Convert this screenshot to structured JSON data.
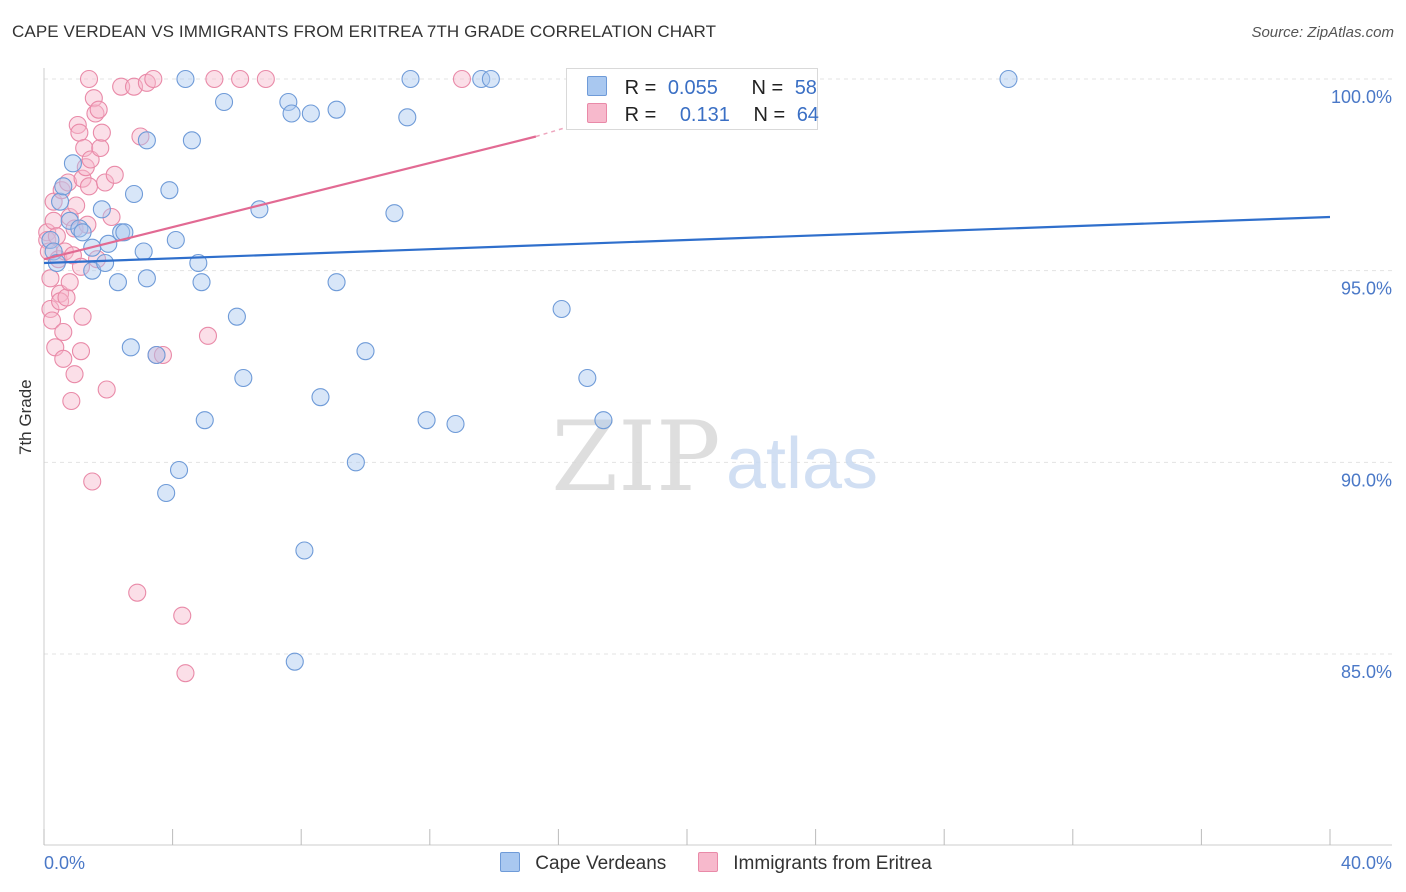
{
  "title": "CAPE VERDEAN VS IMMIGRANTS FROM ERITREA 7TH GRADE CORRELATION CHART",
  "source": "Source: ZipAtlas.com",
  "watermark": {
    "zip": "ZIP",
    "atlas": "atlas"
  },
  "legend": {
    "rows": [
      {
        "r_label": "R =",
        "r_value": "0.055",
        "n_label": "N =",
        "n_value": "58",
        "color": "#a9c8f0",
        "border": "#6f9bd8"
      },
      {
        "r_label": "R =",
        "r_value": "0.131",
        "n_label": "N =",
        "n_value": "64",
        "color": "#f7b9cc",
        "border": "#e98aa8"
      }
    ]
  },
  "bottom_legend": [
    {
      "label": "Cape Verdeans",
      "color": "#a9c8f0",
      "border": "#6f9bd8"
    },
    {
      "label": "Immigrants from Eritrea",
      "color": "#f7b9cc",
      "border": "#e98aa8"
    }
  ],
  "chart_data": {
    "type": "scatter",
    "title": "CAPE VERDEAN VS IMMIGRANTS FROM ERITREA 7TH GRADE CORRELATION CHART",
    "xlabel": "",
    "ylabel": "7th Grade",
    "xlim": [
      0,
      40
    ],
    "ylim": [
      80.0,
      100.5
    ],
    "x_tick_labels": [
      "0.0%",
      "40.0%"
    ],
    "y_ticks": [
      85,
      90,
      95,
      100
    ],
    "y_tick_labels": [
      "85.0%",
      "90.0%",
      "95.0%",
      "100.0%"
    ],
    "grid": true,
    "series": [
      {
        "name": "Cape Verdeans",
        "color": "#a9c8f0",
        "stroke": "#6f9bd8",
        "trend_color": "#2f6fcc",
        "trend": {
          "x": [
            0,
            40
          ],
          "y": [
            95.2,
            96.4
          ]
        },
        "points": [
          [
            0.2,
            95.8
          ],
          [
            0.3,
            95.5
          ],
          [
            0.4,
            95.2
          ],
          [
            0.5,
            96.8
          ],
          [
            0.6,
            97.2
          ],
          [
            0.8,
            96.3
          ],
          [
            0.9,
            97.8
          ],
          [
            1.1,
            96.1
          ],
          [
            1.2,
            96.0
          ],
          [
            1.5,
            95.6
          ],
          [
            1.5,
            95.0
          ],
          [
            1.8,
            96.6
          ],
          [
            1.9,
            95.2
          ],
          [
            2.0,
            95.7
          ],
          [
            2.3,
            94.7
          ],
          [
            2.4,
            96.0
          ],
          [
            2.5,
            96.0
          ],
          [
            2.7,
            93.0
          ],
          [
            2.8,
            97.0
          ],
          [
            3.1,
            95.5
          ],
          [
            3.2,
            94.8
          ],
          [
            3.2,
            98.4
          ],
          [
            3.5,
            92.8
          ],
          [
            3.8,
            89.2
          ],
          [
            3.9,
            97.1
          ],
          [
            4.1,
            95.8
          ],
          [
            4.2,
            89.8
          ],
          [
            4.4,
            100.0
          ],
          [
            4.6,
            98.4
          ],
          [
            4.8,
            95.2
          ],
          [
            4.9,
            94.7
          ],
          [
            5.0,
            91.1
          ],
          [
            5.6,
            99.4
          ],
          [
            6.0,
            93.8
          ],
          [
            6.2,
            92.2
          ],
          [
            6.7,
            96.6
          ],
          [
            7.6,
            99.4
          ],
          [
            7.7,
            99.1
          ],
          [
            7.8,
            84.8
          ],
          [
            8.1,
            87.7
          ],
          [
            8.3,
            99.1
          ],
          [
            8.6,
            91.7
          ],
          [
            9.1,
            99.2
          ],
          [
            9.1,
            94.7
          ],
          [
            9.7,
            90.0
          ],
          [
            10.0,
            92.9
          ],
          [
            10.9,
            96.5
          ],
          [
            11.3,
            99.0
          ],
          [
            11.4,
            100.0
          ],
          [
            11.9,
            91.1
          ],
          [
            12.8,
            91.0
          ],
          [
            13.6,
            100.0
          ],
          [
            13.9,
            100.0
          ],
          [
            16.1,
            94.0
          ],
          [
            16.9,
            92.2
          ],
          [
            17.4,
            91.1
          ],
          [
            22.4,
            100.0
          ],
          [
            30.0,
            100.0
          ]
        ]
      },
      {
        "name": "Immigrants from Eritrea",
        "color": "#f7b9cc",
        "stroke": "#e98aa8",
        "trend_color": "#e26a93",
        "trend": {
          "x": [
            0,
            15.3
          ],
          "y": [
            95.3,
            98.5
          ]
        },
        "trend_dashed": {
          "x": [
            15.3,
            18.5
          ],
          "y": [
            98.5,
            99.3
          ]
        },
        "points": [
          [
            0.1,
            96.0
          ],
          [
            0.1,
            95.8
          ],
          [
            0.15,
            95.5
          ],
          [
            0.2,
            94.8
          ],
          [
            0.2,
            94.0
          ],
          [
            0.25,
            93.7
          ],
          [
            0.3,
            96.8
          ],
          [
            0.3,
            96.3
          ],
          [
            0.35,
            93.0
          ],
          [
            0.4,
            95.9
          ],
          [
            0.45,
            95.3
          ],
          [
            0.5,
            94.4
          ],
          [
            0.5,
            94.2
          ],
          [
            0.55,
            97.1
          ],
          [
            0.6,
            93.4
          ],
          [
            0.6,
            92.7
          ],
          [
            0.65,
            95.5
          ],
          [
            0.7,
            94.3
          ],
          [
            0.75,
            97.3
          ],
          [
            0.8,
            96.4
          ],
          [
            0.8,
            94.7
          ],
          [
            0.85,
            91.6
          ],
          [
            0.9,
            95.4
          ],
          [
            0.95,
            96.1
          ],
          [
            0.95,
            92.3
          ],
          [
            1.0,
            96.7
          ],
          [
            1.05,
            98.8
          ],
          [
            1.1,
            98.6
          ],
          [
            1.15,
            95.1
          ],
          [
            1.15,
            92.9
          ],
          [
            1.2,
            97.4
          ],
          [
            1.2,
            93.8
          ],
          [
            1.25,
            98.2
          ],
          [
            1.3,
            97.7
          ],
          [
            1.35,
            96.2
          ],
          [
            1.4,
            97.2
          ],
          [
            1.4,
            100.0
          ],
          [
            1.45,
            97.9
          ],
          [
            1.5,
            89.5
          ],
          [
            1.55,
            99.5
          ],
          [
            1.6,
            99.1
          ],
          [
            1.65,
            95.3
          ],
          [
            1.7,
            99.2
          ],
          [
            1.75,
            98.2
          ],
          [
            1.8,
            98.6
          ],
          [
            1.9,
            97.3
          ],
          [
            1.95,
            91.9
          ],
          [
            2.1,
            96.4
          ],
          [
            2.2,
            97.5
          ],
          [
            2.4,
            99.8
          ],
          [
            2.8,
            99.8
          ],
          [
            2.9,
            86.6
          ],
          [
            3.0,
            98.5
          ],
          [
            3.2,
            99.9
          ],
          [
            3.4,
            100.0
          ],
          [
            3.5,
            92.8
          ],
          [
            3.7,
            92.8
          ],
          [
            4.3,
            86.0
          ],
          [
            4.4,
            84.5
          ],
          [
            5.1,
            93.3
          ],
          [
            5.3,
            100.0
          ],
          [
            6.1,
            100.0
          ],
          [
            6.9,
            100.0
          ],
          [
            13.0,
            100.0
          ]
        ]
      }
    ]
  }
}
